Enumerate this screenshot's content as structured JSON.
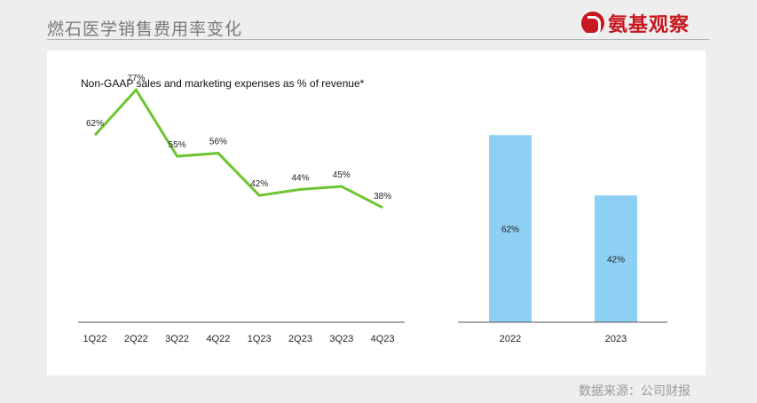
{
  "header": {
    "title": "燃石医学销售费用率变化",
    "logo_text": "氨基观察"
  },
  "footer": {
    "source": "数据来源：公司财报"
  },
  "colors": {
    "line": "#6cc531",
    "bar": "#8ed0f4",
    "axis": "#555555",
    "logo": "#c8171e"
  },
  "chart_data": [
    {
      "type": "line",
      "title": "Non-GAAP sales and marketing expenses as % of revenue*",
      "categories": [
        "1Q22",
        "2Q22",
        "3Q22",
        "4Q22",
        "1Q23",
        "2Q23",
        "3Q23",
        "4Q23"
      ],
      "series": [
        {
          "values": [
            62,
            77,
            55,
            56,
            42,
            44,
            45,
            38
          ]
        }
      ],
      "data_labels": [
        "62%",
        "77%",
        "55%",
        "56%",
        "42%",
        "44%",
        "45%",
        "38%"
      ],
      "xlabel": "",
      "ylabel": "",
      "ylim": [
        0,
        90
      ],
      "grid": false
    },
    {
      "type": "bar",
      "categories": [
        "2022",
        "2023"
      ],
      "values": [
        62,
        42
      ],
      "data_labels": [
        "62%",
        "42%"
      ],
      "xlabel": "",
      "ylabel": "",
      "ylim": [
        0,
        90
      ],
      "grid": false
    }
  ]
}
